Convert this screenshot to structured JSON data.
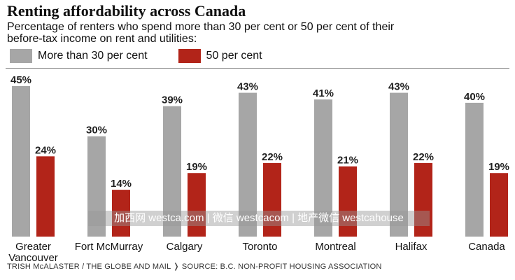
{
  "chart_data": {
    "type": "bar",
    "title": "Renting affordability across Canada",
    "subtitle": "Percentage of renters who spend more than 30 per cent or 50 per cent of their before-tax income on rent and utilities:",
    "categories": [
      [
        "Greater",
        "Vancouver"
      ],
      [
        "Fort McMurray"
      ],
      [
        "Calgary"
      ],
      [
        "Toronto"
      ],
      [
        "Montreal"
      ],
      [
        "Halifax"
      ],
      [
        "Canada"
      ]
    ],
    "series": [
      {
        "name": "More than 30 per cent",
        "color": "#a6a6a6",
        "values": [
          45,
          30,
          39,
          43,
          41,
          43,
          40
        ]
      },
      {
        "name": "50 per cent",
        "color": "#b22419",
        "values": [
          24,
          14,
          19,
          22,
          21,
          22,
          19
        ]
      }
    ],
    "value_suffix": "%",
    "ylim": [
      0,
      45
    ],
    "legend_position": "top-left",
    "grid": false,
    "xlabel": "",
    "ylabel": ""
  },
  "watermark": "加西网 westca.com | 微信 westcacom | 地产微信 westcahouse",
  "credit": "TRISH McALASTER / THE GLOBE AND MAIL  ❭  SOURCE: B.C. NON-PROFIT HOUSING ASSOCIATION"
}
